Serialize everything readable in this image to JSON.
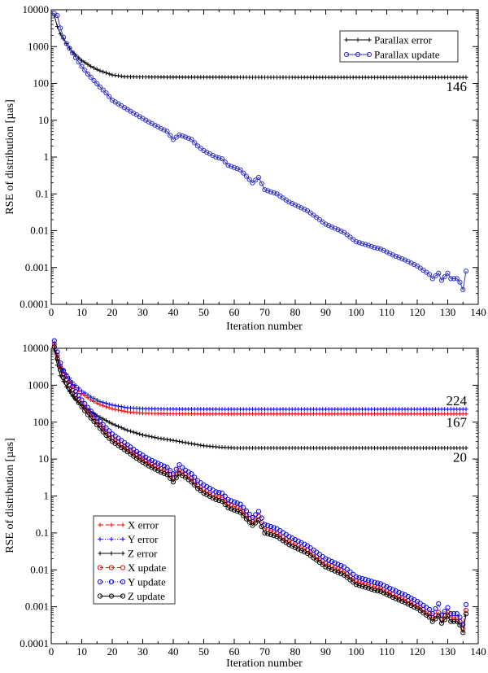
{
  "chart_data": [
    {
      "type": "line",
      "title": "",
      "xlabel": "Iteration number",
      "ylabel": "RSE of distribution [µas]",
      "xlim": [
        0,
        140
      ],
      "ylim": [
        0.0001,
        10000
      ],
      "yscale": "log",
      "xticks": [
        0,
        10,
        20,
        30,
        40,
        50,
        60,
        70,
        80,
        90,
        100,
        110,
        120,
        130,
        140
      ],
      "yticks": [
        0.0001,
        0.001,
        0.01,
        0.1,
        1,
        10,
        100,
        1000,
        10000
      ],
      "ytick_labels": [
        "0.0001",
        "0.001",
        "0.01",
        "0.1",
        "1",
        "10",
        "100",
        "1000",
        "10000"
      ],
      "legend": "top-right",
      "annotations": [
        {
          "text": "146",
          "x": 136,
          "y": 146
        }
      ],
      "series": [
        {
          "name": "Parallax error",
          "color": "#000000",
          "marker": "plus",
          "x": [
            1,
            2,
            3,
            5,
            7,
            10,
            13,
            16,
            20,
            24,
            30,
            40,
            60,
            80,
            100,
            120,
            136
          ],
          "values": [
            7000,
            3500,
            2200,
            1200,
            700,
            420,
            290,
            220,
            170,
            152,
            150,
            148,
            147,
            146,
            146,
            146,
            146
          ]
        },
        {
          "name": "Parallax update",
          "color": "#3333cc",
          "marker": "circle",
          "x": [
            1,
            2,
            3,
            4,
            5,
            6,
            8,
            10,
            12,
            14,
            16,
            18,
            20,
            24,
            28,
            32,
            36,
            38,
            40,
            42,
            44,
            46,
            48,
            50,
            54,
            56,
            58,
            62,
            66,
            68,
            70,
            74,
            78,
            84,
            90,
            96,
            100,
            104,
            106,
            108,
            112,
            116,
            120,
            124,
            125,
            127,
            128,
            130,
            131,
            133,
            134,
            135,
            136
          ],
          "values": [
            8000,
            7000,
            3200,
            1800,
            1200,
            900,
            500,
            290,
            180,
            120,
            80,
            55,
            35,
            22,
            14,
            9,
            6,
            5,
            3,
            4,
            3.5,
            3,
            2,
            1.5,
            1,
            0.9,
            0.6,
            0.45,
            0.2,
            0.28,
            0.13,
            0.1,
            0.06,
            0.035,
            0.015,
            0.009,
            0.005,
            0.004,
            0.0035,
            0.0032,
            0.0022,
            0.0016,
            0.0011,
            0.00065,
            0.0005,
            0.0007,
            0.00045,
            0.0007,
            0.0005,
            0.0005,
            0.0004,
            0.00025,
            0.0008
          ]
        }
      ]
    },
    {
      "type": "line",
      "title": "",
      "xlabel": "Iteration number",
      "ylabel": "RSE of distribution [µas]",
      "xlim": [
        0,
        140
      ],
      "ylim": [
        0.0001,
        10000
      ],
      "yscale": "log",
      "xticks": [
        0,
        10,
        20,
        30,
        40,
        50,
        60,
        70,
        80,
        90,
        100,
        110,
        120,
        130,
        140
      ],
      "yticks": [
        0.0001,
        0.001,
        0.01,
        0.1,
        1,
        10,
        100,
        1000,
        10000
      ],
      "ytick_labels": [
        "0.0001",
        "0.001",
        "0.01",
        "0.1",
        "1",
        "10",
        "100",
        "1000",
        "10000"
      ],
      "legend": "bottom-left",
      "annotations": [
        {
          "text": "224",
          "x": 136,
          "y": 224
        },
        {
          "text": "167",
          "x": 136,
          "y": 167
        },
        {
          "text": "20",
          "x": 136,
          "y": 20
        }
      ],
      "series": [
        {
          "name": "X error",
          "color": "#ff0000",
          "marker": "plus",
          "dash": "4,3",
          "x": [
            1,
            2,
            3,
            5,
            7,
            10,
            13,
            16,
            20,
            25,
            30,
            40,
            60,
            80,
            100,
            120,
            136
          ],
          "values": [
            12000,
            5000,
            3000,
            1700,
            1000,
            600,
            400,
            300,
            230,
            190,
            175,
            168,
            167,
            167,
            167,
            167,
            167
          ]
        },
        {
          "name": "Y error",
          "color": "#0000ff",
          "marker": "plus",
          "dash": "1,2",
          "x": [
            1,
            2,
            3,
            5,
            7,
            10,
            13,
            16,
            20,
            25,
            30,
            40,
            60,
            80,
            100,
            120,
            136
          ],
          "values": [
            14000,
            6000,
            3500,
            2000,
            1200,
            700,
            480,
            360,
            290,
            245,
            232,
            226,
            224,
            224,
            224,
            224,
            224
          ]
        },
        {
          "name": "Z error",
          "color": "#000000",
          "marker": "plus",
          "dash": "",
          "x": [
            1,
            2,
            3,
            5,
            7,
            10,
            15,
            20,
            25,
            30,
            35,
            40,
            45,
            50,
            55,
            60,
            80,
            100,
            120,
            136
          ],
          "values": [
            9000,
            3500,
            1800,
            900,
            500,
            280,
            150,
            90,
            60,
            45,
            37,
            32,
            27,
            23,
            21,
            20,
            20,
            20,
            20,
            20
          ]
        },
        {
          "name": "X update",
          "color": "#ff0000",
          "marker": "circle",
          "dash": "4,3",
          "x": [
            1,
            2,
            3,
            4,
            6,
            8,
            10,
            12,
            14,
            16,
            18,
            20,
            24,
            28,
            32,
            36,
            38,
            40,
            42,
            44,
            46,
            48,
            50,
            54,
            56,
            58,
            62,
            66,
            68,
            70,
            74,
            78,
            84,
            90,
            96,
            100,
            104,
            106,
            108,
            112,
            116,
            120,
            124,
            125,
            127,
            128,
            130,
            131,
            133,
            134,
            135,
            136
          ],
          "values": [
            13000,
            6500,
            3200,
            2000,
            1000,
            550,
            320,
            200,
            130,
            85,
            55,
            38,
            22,
            13,
            8,
            5.5,
            4.8,
            3,
            5,
            4,
            3,
            2,
            1.5,
            1,
            0.9,
            0.6,
            0.45,
            0.2,
            0.28,
            0.13,
            0.1,
            0.06,
            0.035,
            0.015,
            0.009,
            0.005,
            0.004,
            0.0035,
            0.0032,
            0.0022,
            0.0016,
            0.0011,
            0.00065,
            0.0005,
            0.0007,
            0.00045,
            0.0007,
            0.0005,
            0.0005,
            0.0004,
            0.00025,
            0.0008
          ]
        },
        {
          "name": "Y update",
          "color": "#0000ff",
          "marker": "circle",
          "dash": "1,2",
          "x": [
            1,
            2,
            3,
            4,
            6,
            8,
            10,
            12,
            14,
            16,
            18,
            20,
            24,
            28,
            32,
            36,
            38,
            40,
            42,
            44,
            46,
            48,
            50,
            54,
            56,
            58,
            62,
            66,
            68,
            70,
            74,
            78,
            84,
            90,
            96,
            100,
            104,
            106,
            108,
            112,
            116,
            120,
            124,
            125,
            127,
            128,
            130,
            131,
            133,
            134,
            135,
            136
          ],
          "values": [
            16000,
            8000,
            4000,
            2500,
            1250,
            680,
            400,
            250,
            160,
            105,
            70,
            48,
            28,
            16,
            10,
            7,
            6,
            4,
            7,
            5,
            4,
            2.6,
            2,
            1.3,
            1.2,
            0.8,
            0.6,
            0.26,
            0.38,
            0.17,
            0.13,
            0.08,
            0.045,
            0.02,
            0.012,
            0.0065,
            0.0052,
            0.0046,
            0.0042,
            0.0029,
            0.0021,
            0.0014,
            0.00085,
            0.00065,
            0.0012,
            0.0006,
            0.00095,
            0.00065,
            0.00065,
            0.00052,
            0.00033,
            0.00115
          ]
        },
        {
          "name": "Z update",
          "color": "#000000",
          "marker": "circle",
          "dash": "",
          "x": [
            1,
            2,
            3,
            4,
            6,
            8,
            10,
            12,
            14,
            16,
            18,
            20,
            24,
            28,
            32,
            36,
            38,
            40,
            42,
            44,
            46,
            48,
            50,
            54,
            56,
            58,
            62,
            66,
            68,
            70,
            74,
            78,
            84,
            90,
            96,
            100,
            104,
            106,
            108,
            112,
            116,
            120,
            124,
            125,
            127,
            128,
            130,
            131,
            133,
            134,
            135,
            136
          ],
          "values": [
            11000,
            5200,
            2600,
            1600,
            800,
            440,
            260,
            160,
            105,
            68,
            44,
            30,
            18,
            10.5,
            6.5,
            4.4,
            3.8,
            2.4,
            4,
            3.2,
            2.4,
            1.6,
            1.2,
            0.8,
            0.72,
            0.48,
            0.36,
            0.16,
            0.22,
            0.1,
            0.08,
            0.048,
            0.028,
            0.012,
            0.0072,
            0.004,
            0.0032,
            0.0028,
            0.0026,
            0.0018,
            0.0013,
            0.0009,
            0.00052,
            0.0004,
            0.00056,
            0.00036,
            0.00056,
            0.0004,
            0.0004,
            0.00032,
            0.0002,
            0.00064
          ]
        }
      ]
    }
  ]
}
